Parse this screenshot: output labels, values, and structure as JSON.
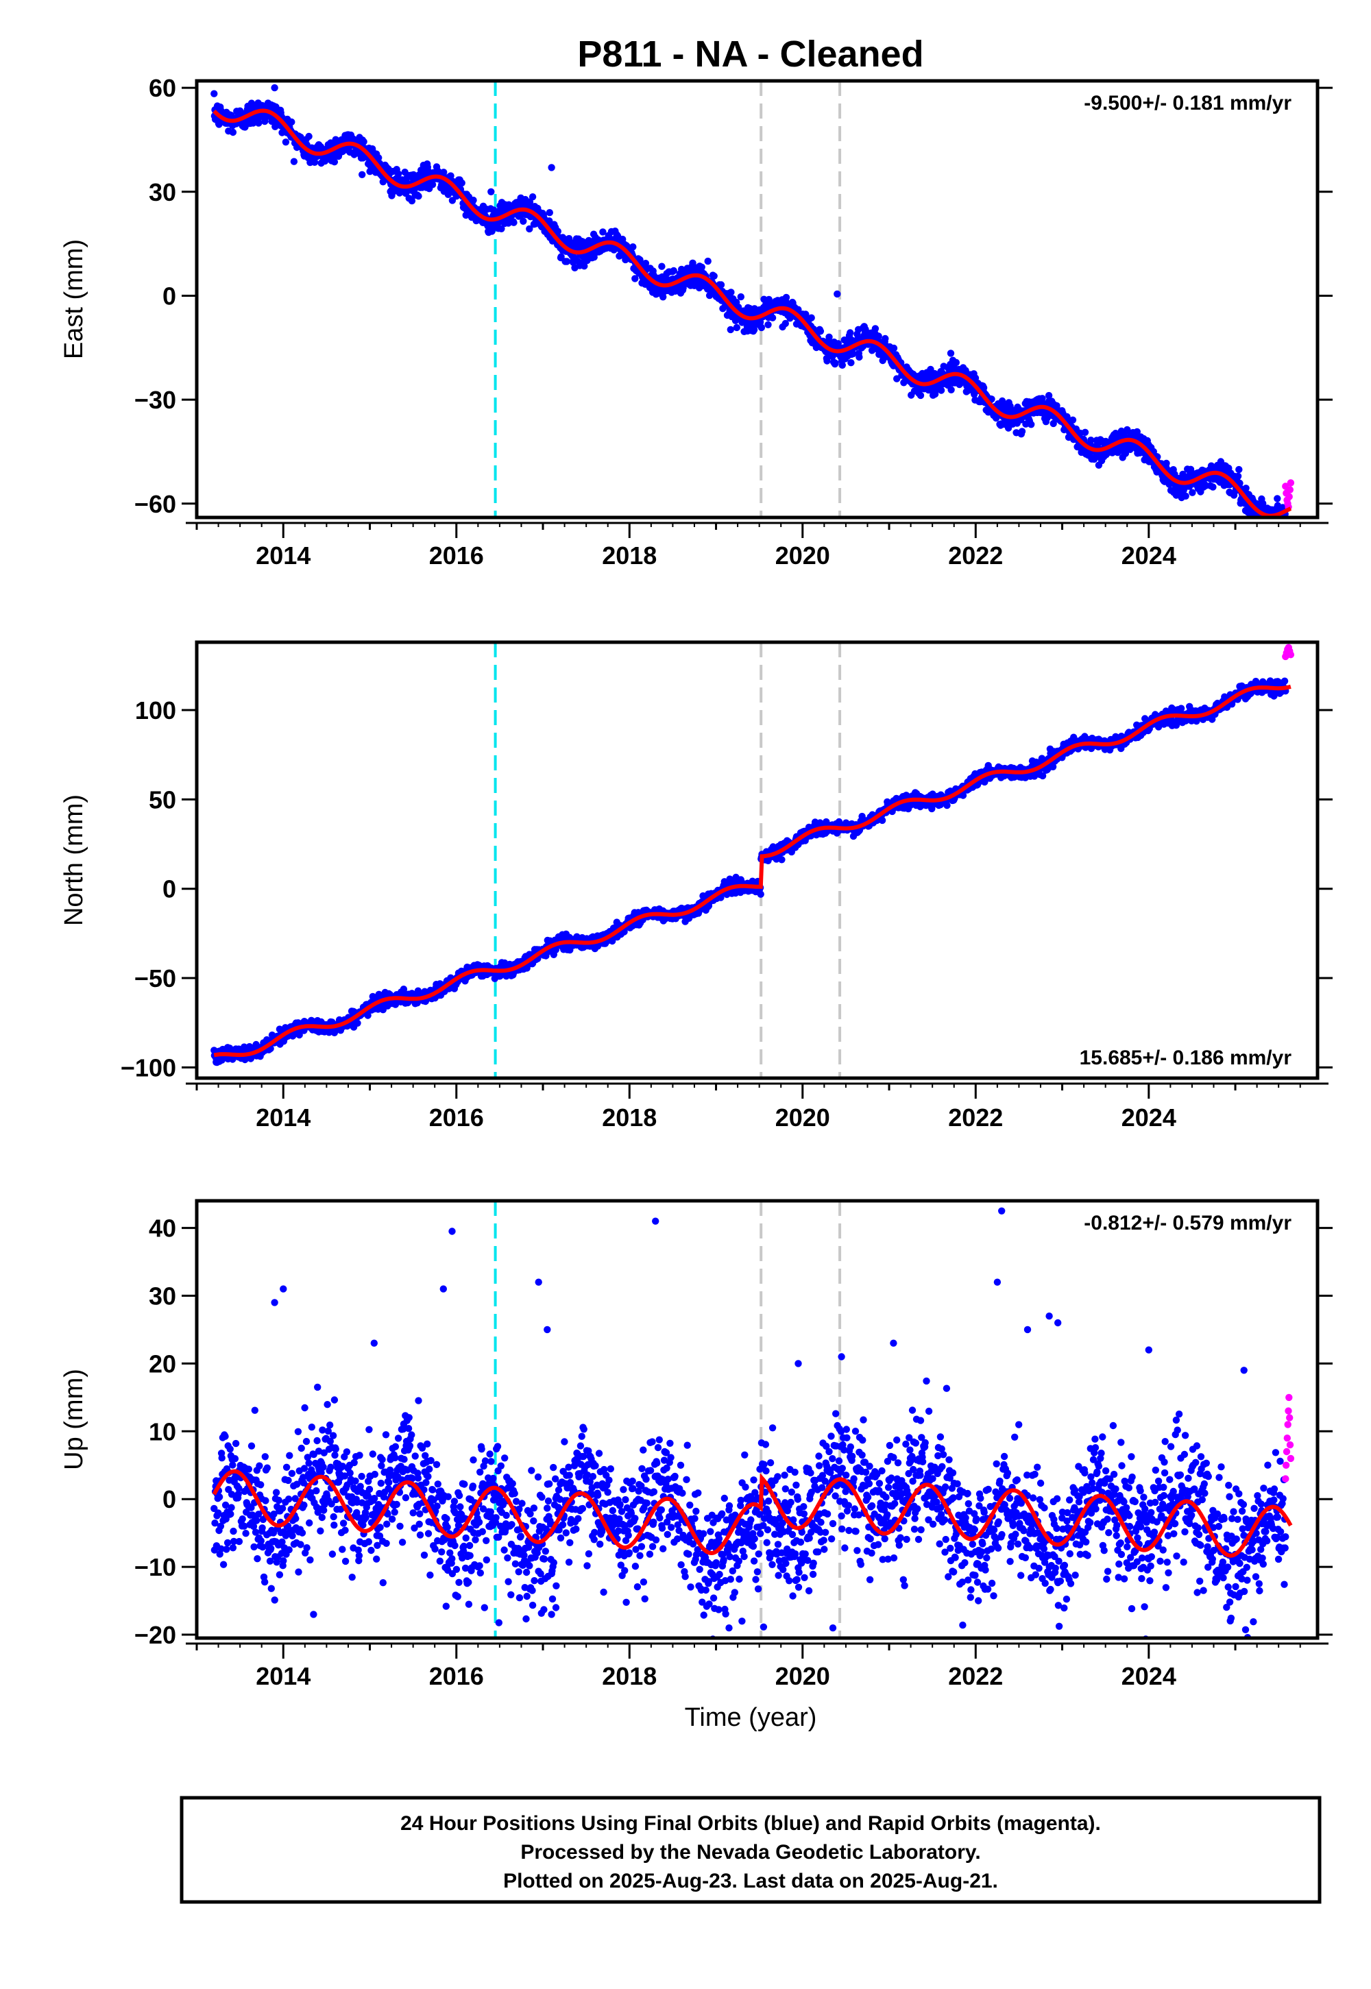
{
  "chart_data": {
    "title": "P811  - NA - Cleaned",
    "x_range": [
      2013.0,
      2025.95
    ],
    "x_ticks": [
      2014,
      2016,
      2018,
      2020,
      2022,
      2024
    ],
    "x_tick_labels": [
      "2014",
      "2016",
      "2018",
      "2020",
      "2022",
      "2024"
    ],
    "xlabel": "Time (year)",
    "data_start": 2013.2,
    "data_end": 2025.64,
    "rapid_start": 2025.58,
    "step_epochs": [
      2019.52
    ],
    "vlines": [
      {
        "x": 2016.45,
        "color": "#00e5ee",
        "style": "dashed"
      },
      {
        "x": 2019.52,
        "color": "#c8c8c8",
        "style": "dashed"
      },
      {
        "x": 2020.43,
        "color": "#c8c8c8",
        "style": "dashed"
      }
    ],
    "colors": {
      "final": "#0000ff",
      "rapid": "#ff00ff",
      "model": "#ff0000",
      "text": "#000000",
      "frame": "#000000"
    },
    "panels": [
      {
        "name": "east",
        "type": "scatter",
        "ylabel": "East (mm)",
        "ylim": [
          -64,
          62
        ],
        "y_ticks": [
          60,
          30,
          0,
          -30,
          -60
        ],
        "y_tick_labels": [
          "60",
          "30",
          "0",
          "−30",
          "−60"
        ],
        "rate": "-9.500+/- 0.181 mm/yr",
        "rate_position": "top-right",
        "model": {
          "intercept": 55.6,
          "slope": -9.5,
          "t0": 2013.2,
          "annual_amp": 3.5,
          "annual_phase": 2.6,
          "steps": [],
          "noise": 1.8
        },
        "outliers": [
          [
            2016.4,
            30
          ],
          [
            2017.1,
            37
          ],
          [
            2013.9,
            60
          ],
          [
            2019.4,
            -10
          ],
          [
            2020.4,
            0.5
          ]
        ],
        "rapid_values": [
          -55,
          -57,
          -59,
          -60,
          -61,
          -58,
          -56,
          -54
        ]
      },
      {
        "name": "north",
        "type": "scatter",
        "ylabel": "North (mm)",
        "ylim": [
          -106,
          138
        ],
        "y_ticks": [
          100,
          50,
          0,
          -50,
          -100
        ],
        "y_tick_labels": [
          "100",
          "50",
          "0",
          "−50",
          "−100"
        ],
        "rate": "15.685+/- 0.186 mm/yr",
        "rate_position": "bottom-right",
        "model": {
          "intercept": -96.0,
          "slope": 15.685,
          "t0": 2013.2,
          "annual_amp": 3.0,
          "annual_phase": 0.6,
          "steps": [
            [
              2019.52,
              17.0
            ]
          ],
          "noise": 1.8
        },
        "outliers": [],
        "rapid_values": [
          130,
          132,
          134,
          135,
          133,
          131
        ]
      },
      {
        "name": "up",
        "type": "scatter",
        "ylabel": "Up (mm)",
        "ylim": [
          -20.5,
          44
        ],
        "y_ticks": [
          40,
          30,
          20,
          10,
          0,
          -10,
          -20
        ],
        "y_tick_labels": [
          "40",
          "30",
          "20",
          "10",
          "0",
          "−10",
          "−20"
        ],
        "rate": "-0.812+/- 0.579 mm/yr",
        "rate_position": "top-right",
        "model": {
          "intercept": 0.5,
          "slope": -0.812,
          "t0": 2013.2,
          "annual_amp": 3.8,
          "annual_phase": -1.2,
          "steps": [
            [
              2019.52,
              4.5
            ]
          ],
          "noise": 4.2
        },
        "outliers": [
          [
            2015.95,
            39.5
          ],
          [
            2018.3,
            41
          ],
          [
            2022.3,
            42.5
          ],
          [
            2015.85,
            31
          ],
          [
            2022.25,
            32
          ],
          [
            2013.9,
            29
          ],
          [
            2014.0,
            31
          ],
          [
            2016.95,
            32
          ],
          [
            2017.05,
            25
          ],
          [
            2022.6,
            25
          ],
          [
            2022.85,
            27
          ],
          [
            2022.95,
            26
          ],
          [
            2014.35,
            -17
          ],
          [
            2017.1,
            -17
          ],
          [
            2017.15,
            -16
          ],
          [
            2019.15,
            -19
          ],
          [
            2019.3,
            -18
          ],
          [
            2020.35,
            -19
          ],
          [
            2020.45,
            21
          ],
          [
            2019.95,
            20
          ],
          [
            2015.05,
            23
          ],
          [
            2021.05,
            23
          ],
          [
            2024.0,
            22
          ],
          [
            2025.1,
            19
          ]
        ],
        "rapid_values": [
          3,
          5,
          7,
          9,
          11,
          13,
          15,
          12,
          8,
          6
        ]
      }
    ],
    "footer": {
      "line1": "24 Hour Positions Using Final Orbits (blue) and Rapid Orbits (magenta).",
      "line2": "Processed by the Nevada Geodetic Laboratory.",
      "line3": "Plotted on 2025-Aug-23. Last data on 2025-Aug-21."
    }
  }
}
